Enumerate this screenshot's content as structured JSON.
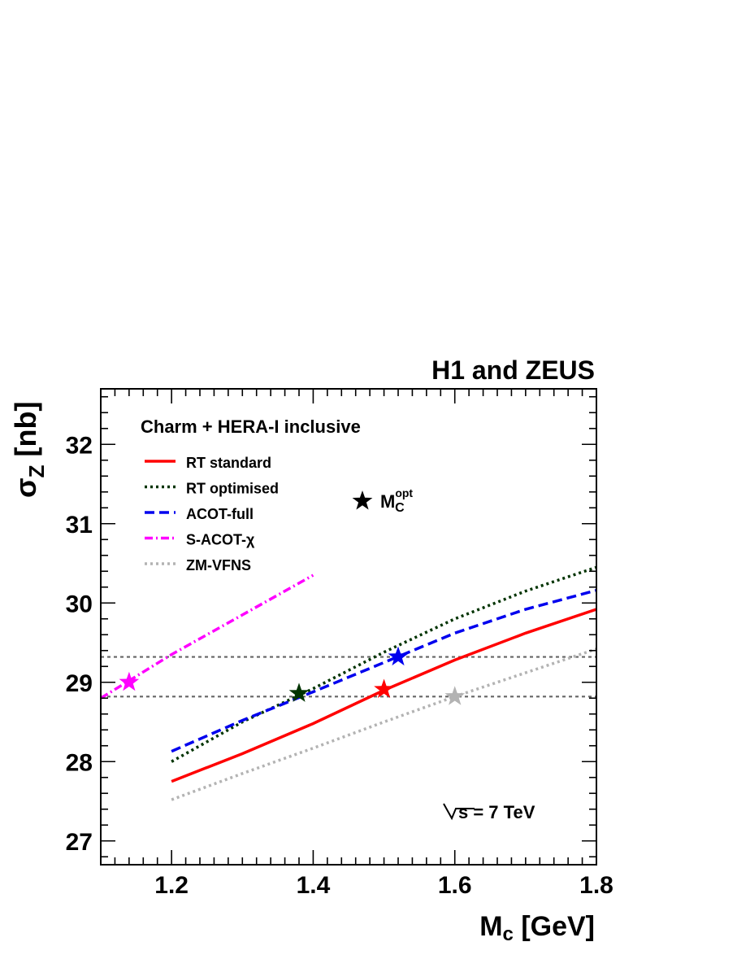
{
  "chart_data": {
    "type": "line",
    "title": "H1 and ZEUS",
    "subtitle": "Charm + HERA-I inclusive",
    "xlabel": {
      "main": "M",
      "sub": "c",
      "unit": " [GeV]"
    },
    "ylabel": {
      "main": "σ",
      "sub": "Z",
      "unit": " [nb]"
    },
    "xlim": [
      1.1,
      1.8
    ],
    "ylim": [
      26.7,
      32.7
    ],
    "xticks": [
      1.2,
      1.4,
      1.6,
      1.8
    ],
    "xtick_labels": [
      "1.2",
      "1.4",
      "1.6",
      "1.8"
    ],
    "yticks": [
      27,
      28,
      29,
      30,
      31,
      32
    ],
    "ytick_labels": [
      "27",
      "28",
      "29",
      "30",
      "31",
      "32"
    ],
    "annotation": {
      "main": "s = 7 TeV"
    },
    "star_legend": {
      "main": "M",
      "sub": "C",
      "sup": "opt"
    },
    "hlines": [
      28.82,
      29.32
    ],
    "series": [
      {
        "name": "RT standard",
        "color": "#ff0000",
        "dash": "solid",
        "x": [
          1.2,
          1.3,
          1.4,
          1.5,
          1.6,
          1.7,
          1.8
        ],
        "y": [
          27.75,
          28.1,
          28.48,
          28.9,
          29.28,
          29.62,
          29.92
        ],
        "star": [
          1.5,
          28.91
        ]
      },
      {
        "name": "RT optimised",
        "color": "#003300",
        "dash": "dot",
        "x": [
          1.2,
          1.3,
          1.4,
          1.5,
          1.6,
          1.7,
          1.8
        ],
        "y": [
          28.0,
          28.5,
          28.92,
          29.38,
          29.8,
          30.15,
          30.45
        ],
        "star": [
          1.38,
          28.86
        ]
      },
      {
        "name": "ACOT-full",
        "color": "#0000ee",
        "dash": "dash",
        "x": [
          1.2,
          1.3,
          1.4,
          1.5,
          1.6,
          1.7,
          1.8
        ],
        "y": [
          28.13,
          28.52,
          28.88,
          29.25,
          29.62,
          29.92,
          30.16
        ],
        "star": [
          1.52,
          29.32
        ]
      },
      {
        "name": "S-ACOT-χ",
        "color": "#ff00ff",
        "dash": "dashdot",
        "x": [
          1.1,
          1.2,
          1.3,
          1.4
        ],
        "y": [
          28.8,
          29.35,
          29.85,
          30.35
        ],
        "star": [
          1.14,
          29.0
        ]
      },
      {
        "name": "ZM-VFNS",
        "color": "#b3b3b3",
        "dash": "dot",
        "x": [
          1.2,
          1.3,
          1.4,
          1.5,
          1.6,
          1.7,
          1.8
        ],
        "y": [
          27.52,
          27.85,
          28.17,
          28.5,
          28.82,
          29.12,
          29.42
        ],
        "star": [
          1.6,
          28.82
        ]
      }
    ]
  }
}
